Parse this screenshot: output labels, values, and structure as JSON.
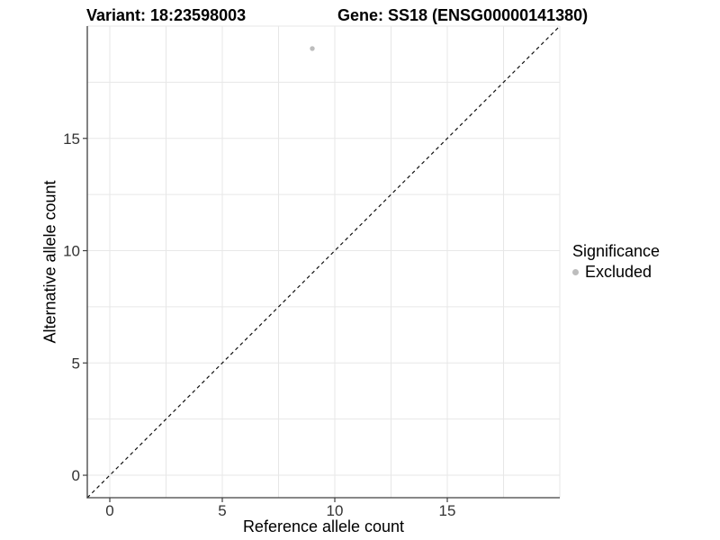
{
  "titles": {
    "variant": "Variant: 18:23598003",
    "gene": "Gene: SS18 (ENSG00000141380)"
  },
  "chart_data": {
    "type": "scatter",
    "points": [
      {
        "x": 9,
        "y": 19,
        "significance": "Excluded"
      }
    ],
    "xlabel": "Reference allele count",
    "ylabel": "Alternative allele count",
    "xlim": [
      -1,
      20
    ],
    "ylim": [
      -1,
      20
    ],
    "xticks": [
      0,
      5,
      10,
      15
    ],
    "yticks": [
      0,
      5,
      10,
      15
    ],
    "gridlines": [
      0,
      2.5,
      5,
      7.5,
      10,
      12.5,
      15,
      17.5,
      20
    ],
    "grid_on": true,
    "reference_line": {
      "slope": 1,
      "intercept": 0,
      "style": "dashed"
    },
    "legend": {
      "title": "Significance",
      "position": "right",
      "items": [
        {
          "label": "Excluded",
          "color": "#bdbdbd"
        }
      ]
    },
    "colors": {
      "grid": "#e7e7e7",
      "axis": "#404040",
      "reference_line": "#111111",
      "background": "#ffffff"
    }
  }
}
